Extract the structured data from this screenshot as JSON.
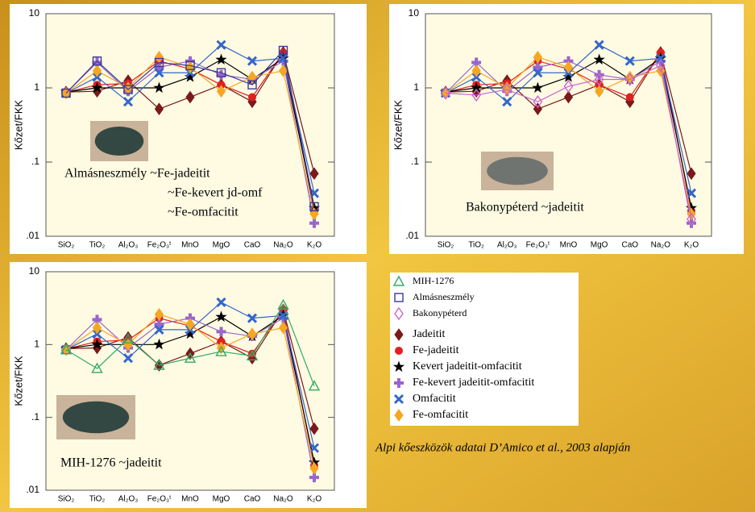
{
  "chart_data": [
    {
      "type": "line",
      "log_y": true,
      "ylabel": "Kőzet/FKK",
      "categories": [
        "SiO₂",
        "TiO₂",
        "Al₂O₃",
        "Fe₂O₃ᵗ",
        "MnO",
        "MgO",
        "CaO",
        "Na₂O",
        "K₂O"
      ],
      "ylim": [
        0.01,
        10
      ],
      "yticks": [
        10,
        1,
        {
          "value": 0.1,
          "label": ".1"
        },
        {
          "value": 0.01,
          "label": ".01"
        }
      ],
      "annotations": [
        "Almásneszmély ~Fe-jadeitit",
        "~Fe-kevert jd-omf",
        "~Fe-omfacitit"
      ],
      "series": [
        {
          "name": "Jadeitit",
          "color": "#7a1a1a",
          "marker": "diamond",
          "values": [
            0.88,
            0.9,
            1.25,
            0.52,
            0.75,
            1.1,
            0.65,
            3.0,
            0.07
          ]
        },
        {
          "name": "Fe-jadeitit",
          "color": "#e02020",
          "marker": "circle",
          "values": [
            0.87,
            1.1,
            1.15,
            2.3,
            1.8,
            1.1,
            0.75,
            3.0,
            0.022
          ]
        },
        {
          "name": "Kevert jadeitit-omfacitit",
          "color": "#000000",
          "marker": "star",
          "values": [
            0.88,
            1.0,
            1.0,
            1.0,
            1.4,
            2.4,
            1.3,
            2.5,
            0.024
          ]
        },
        {
          "name": "Fe-kevert jadeitit-omfacitit",
          "color": "#9966cc",
          "marker": "plus",
          "values": [
            0.85,
            2.2,
            0.9,
            1.9,
            2.3,
            1.5,
            1.3,
            2.3,
            0.015
          ]
        },
        {
          "name": "Omfacitit",
          "color": "#3366cc",
          "marker": "x",
          "values": [
            0.85,
            1.4,
            0.65,
            1.6,
            1.6,
            3.8,
            2.3,
            2.5,
            0.038
          ]
        },
        {
          "name": "Fe-omfacitit",
          "color": "#f5a623",
          "marker": "diamond",
          "values": [
            0.85,
            1.7,
            1.0,
            2.6,
            1.9,
            0.9,
            1.4,
            1.7,
            0.02
          ]
        },
        {
          "name": "Almásneszmély",
          "color": "#3a3a99",
          "marker": "square-open",
          "values": [
            0.85,
            2.3,
            0.95,
            2.2,
            2.0,
            1.6,
            1.1,
            3.2,
            0.025
          ]
        }
      ]
    },
    {
      "type": "line",
      "log_y": true,
      "ylabel": "Kőzet/FKK",
      "categories": [
        "SiO₂",
        "TiO₂",
        "Al₂O₃",
        "Fe₂O₃ᵗ",
        "MnO",
        "MgO",
        "CaO",
        "Na₂O",
        "K₂O"
      ],
      "ylim": [
        0.01,
        10
      ],
      "yticks": [
        10,
        1,
        {
          "value": 0.1,
          "label": ".1"
        },
        {
          "value": 0.01,
          "label": ".01"
        }
      ],
      "annotations": [
        "Bakonypéterd ~jadeitit"
      ],
      "series": [
        {
          "name": "Jadeitit",
          "color": "#7a1a1a",
          "marker": "diamond",
          "values": [
            0.88,
            0.9,
            1.25,
            0.52,
            0.75,
            1.1,
            0.65,
            3.0,
            0.07
          ]
        },
        {
          "name": "Fe-jadeitit",
          "color": "#e02020",
          "marker": "circle",
          "values": [
            0.87,
            1.1,
            1.15,
            2.3,
            1.8,
            1.1,
            0.75,
            3.0,
            0.022
          ]
        },
        {
          "name": "Kevert jadeitit-omfacitit",
          "color": "#000000",
          "marker": "star",
          "values": [
            0.88,
            1.0,
            1.0,
            1.0,
            1.4,
            2.4,
            1.3,
            2.5,
            0.024
          ]
        },
        {
          "name": "Fe-kevert jadeitit-omfacitit",
          "color": "#9966cc",
          "marker": "plus",
          "values": [
            0.85,
            2.2,
            0.9,
            1.9,
            2.3,
            1.5,
            1.3,
            2.3,
            0.015
          ]
        },
        {
          "name": "Omfacitit",
          "color": "#3366cc",
          "marker": "x",
          "values": [
            0.85,
            1.4,
            0.65,
            1.6,
            1.6,
            3.8,
            2.3,
            2.5,
            0.038
          ]
        },
        {
          "name": "Fe-omfacitit",
          "color": "#f5a623",
          "marker": "diamond",
          "values": [
            0.85,
            1.7,
            1.0,
            2.6,
            1.9,
            0.9,
            1.4,
            1.7,
            0.02
          ]
        },
        {
          "name": "Bakonypéterd",
          "color": "#cc66cc",
          "marker": "diamond-open",
          "values": [
            0.85,
            0.8,
            0.95,
            0.65,
            1.05,
            1.3,
            1.3,
            2.0,
            0.017
          ]
        }
      ]
    },
    {
      "type": "line",
      "log_y": true,
      "ylabel": "Kőzet/FKK",
      "categories": [
        "SiO₂",
        "TiO₂",
        "Al₂O₃",
        "Fe₂O₃ᵗ",
        "MnO",
        "MgO",
        "CaO",
        "Na₂O",
        "K₂O"
      ],
      "ylim": [
        0.01,
        10
      ],
      "yticks": [
        10,
        1,
        {
          "value": 0.1,
          "label": ".1"
        },
        {
          "value": 0.01,
          "label": ".01"
        }
      ],
      "annotations": [
        "MIH-1276 ~jadeitit"
      ],
      "series": [
        {
          "name": "Jadeitit",
          "color": "#7a1a1a",
          "marker": "diamond",
          "values": [
            0.88,
            0.9,
            1.25,
            0.52,
            0.75,
            1.1,
            0.65,
            3.0,
            0.07
          ]
        },
        {
          "name": "Fe-jadeitit",
          "color": "#e02020",
          "marker": "circle",
          "values": [
            0.87,
            1.1,
            1.15,
            2.3,
            1.8,
            1.1,
            0.75,
            3.0,
            0.022
          ]
        },
        {
          "name": "Kevert jadeitit-omfacitit",
          "color": "#000000",
          "marker": "star",
          "values": [
            0.88,
            1.0,
            1.0,
            1.0,
            1.4,
            2.4,
            1.3,
            2.5,
            0.024
          ]
        },
        {
          "name": "Fe-kevert jadeitit-omfacitit",
          "color": "#9966cc",
          "marker": "plus",
          "values": [
            0.85,
            2.2,
            0.9,
            1.9,
            2.3,
            1.5,
            1.3,
            2.3,
            0.015
          ]
        },
        {
          "name": "Omfacitit",
          "color": "#3366cc",
          "marker": "x",
          "values": [
            0.85,
            1.4,
            0.65,
            1.6,
            1.6,
            3.8,
            2.3,
            2.5,
            0.038
          ]
        },
        {
          "name": "Fe-omfacitit",
          "color": "#f5a623",
          "marker": "diamond",
          "values": [
            0.85,
            1.7,
            1.0,
            2.6,
            1.9,
            0.9,
            1.4,
            1.7,
            0.02
          ]
        },
        {
          "name": "MIH-1276",
          "color": "#33aa66",
          "marker": "triangle-open",
          "values": [
            0.85,
            0.47,
            1.2,
            0.52,
            0.65,
            0.8,
            0.7,
            3.5,
            0.27
          ]
        }
      ]
    }
  ],
  "caption": "Alpi kőeszközök adatai D’Amico et al., 2003 alapján"
}
